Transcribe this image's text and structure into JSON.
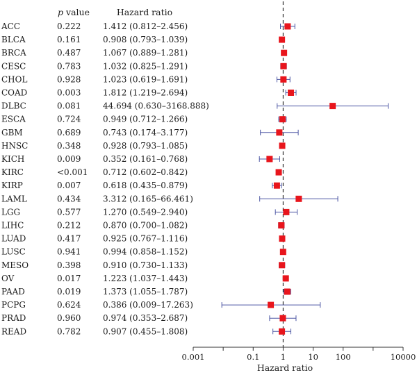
{
  "chart_data": {
    "type": "forest",
    "headers": {
      "pvalue": "p value",
      "hr": "Hazard ratio"
    },
    "xlabel": "Hazard ratio",
    "x_scale": "log",
    "xlim": [
      0.001,
      10000
    ],
    "reference_line": 1,
    "x_ticks": [
      {
        "value": 0.001,
        "label": "0.001"
      },
      {
        "value": 0.1,
        "label": "0.1"
      },
      {
        "value": 1,
        "label": "1"
      },
      {
        "value": 10,
        "label": "10"
      },
      {
        "value": 100,
        "label": "100"
      },
      {
        "value": 10000,
        "label": "10000"
      }
    ],
    "colors": {
      "marker": "#e8151c",
      "whisker": "#4b55a3",
      "reference": "#333333",
      "axis": "#333333"
    },
    "rows": [
      {
        "cancer": "ACC",
        "p": "0.222",
        "hr_text": "1.412 (0.812–2.456)",
        "hr": 1.412,
        "lo": 0.812,
        "hi": 2.456
      },
      {
        "cancer": "BLCA",
        "p": "0.161",
        "hr_text": "0.908 (0.793–1.039)",
        "hr": 0.908,
        "lo": 0.793,
        "hi": 1.039
      },
      {
        "cancer": "BRCA",
        "p": "0.487",
        "hr_text": "1.067 (0.889–1.281)",
        "hr": 1.067,
        "lo": 0.889,
        "hi": 1.281
      },
      {
        "cancer": "CESC",
        "p": "0.783",
        "hr_text": "1.032 (0.825–1.291)",
        "hr": 1.032,
        "lo": 0.825,
        "hi": 1.291
      },
      {
        "cancer": "CHOL",
        "p": "0.928",
        "hr_text": "1.023 (0.619–1.691)",
        "hr": 1.023,
        "lo": 0.619,
        "hi": 1.691
      },
      {
        "cancer": "COAD",
        "p": "0.003",
        "hr_text": "1.812 (1.219–2.694)",
        "hr": 1.812,
        "lo": 1.219,
        "hi": 2.694
      },
      {
        "cancer": "DLBC",
        "p": "0.081",
        "hr_text": "44.694 (0.630–3168.888)",
        "hr": 44.694,
        "lo": 0.63,
        "hi": 3168.888
      },
      {
        "cancer": "ESCA",
        "p": "0.724",
        "hr_text": "0.949 (0.712–1.266)",
        "hr": 0.949,
        "lo": 0.712,
        "hi": 1.266
      },
      {
        "cancer": "GBM",
        "p": "0.689",
        "hr_text": "0.743 (0.174–3.177)",
        "hr": 0.743,
        "lo": 0.174,
        "hi": 3.177
      },
      {
        "cancer": "HNSC",
        "p": "0.348",
        "hr_text": "0.928 (0.793–1.085)",
        "hr": 0.928,
        "lo": 0.793,
        "hi": 1.085
      },
      {
        "cancer": "KICH",
        "p": "0.009",
        "hr_text": "0.352 (0.161–0.768)",
        "hr": 0.352,
        "lo": 0.161,
        "hi": 0.768
      },
      {
        "cancer": "KIRC",
        "p": "<0.001",
        "hr_text": "0.712 (0.602–0.842)",
        "hr": 0.712,
        "lo": 0.602,
        "hi": 0.842
      },
      {
        "cancer": "KIRP",
        "p": "0.007",
        "hr_text": "0.618 (0.435–0.879)",
        "hr": 0.618,
        "lo": 0.435,
        "hi": 0.879
      },
      {
        "cancer": "LAML",
        "p": "0.434",
        "hr_text": "3.312 (0.165–66.461)",
        "hr": 3.312,
        "lo": 0.165,
        "hi": 66.461
      },
      {
        "cancer": "LGG",
        "p": "0.577",
        "hr_text": "1.270 (0.549–2.940)",
        "hr": 1.27,
        "lo": 0.549,
        "hi": 2.94
      },
      {
        "cancer": "LIHC",
        "p": "0.212",
        "hr_text": "0.870 (0.700–1.082)",
        "hr": 0.87,
        "lo": 0.7,
        "hi": 1.082
      },
      {
        "cancer": "LUAD",
        "p": "0.417",
        "hr_text": "0.925 (0.767–1.116)",
        "hr": 0.925,
        "lo": 0.767,
        "hi": 1.116
      },
      {
        "cancer": "LUSC",
        "p": "0.941",
        "hr_text": "0.994 (0.858–1.152)",
        "hr": 0.994,
        "lo": 0.858,
        "hi": 1.152
      },
      {
        "cancer": "MESO",
        "p": "0.398",
        "hr_text": "0.910 (0.730–1.133)",
        "hr": 0.91,
        "lo": 0.73,
        "hi": 1.133
      },
      {
        "cancer": "OV",
        "p": "0.017",
        "hr_text": "1.223 (1.037–1.443)",
        "hr": 1.223,
        "lo": 1.037,
        "hi": 1.443
      },
      {
        "cancer": "PAAD",
        "p": "0.019",
        "hr_text": "1.373 (1.055–1.787)",
        "hr": 1.373,
        "lo": 1.055,
        "hi": 1.787
      },
      {
        "cancer": "PCPG",
        "p": "0.624",
        "hr_text": "0.386 (0.009–17.263)",
        "hr": 0.386,
        "lo": 0.009,
        "hi": 17.263
      },
      {
        "cancer": "PRAD",
        "p": "0.960",
        "hr_text": "0.974 (0.353–2.687)",
        "hr": 0.974,
        "lo": 0.353,
        "hi": 2.687
      },
      {
        "cancer": "READ",
        "p": "0.782",
        "hr_text": "0.907 (0.455–1.808)",
        "hr": 0.907,
        "lo": 0.455,
        "hi": 1.808
      }
    ]
  }
}
